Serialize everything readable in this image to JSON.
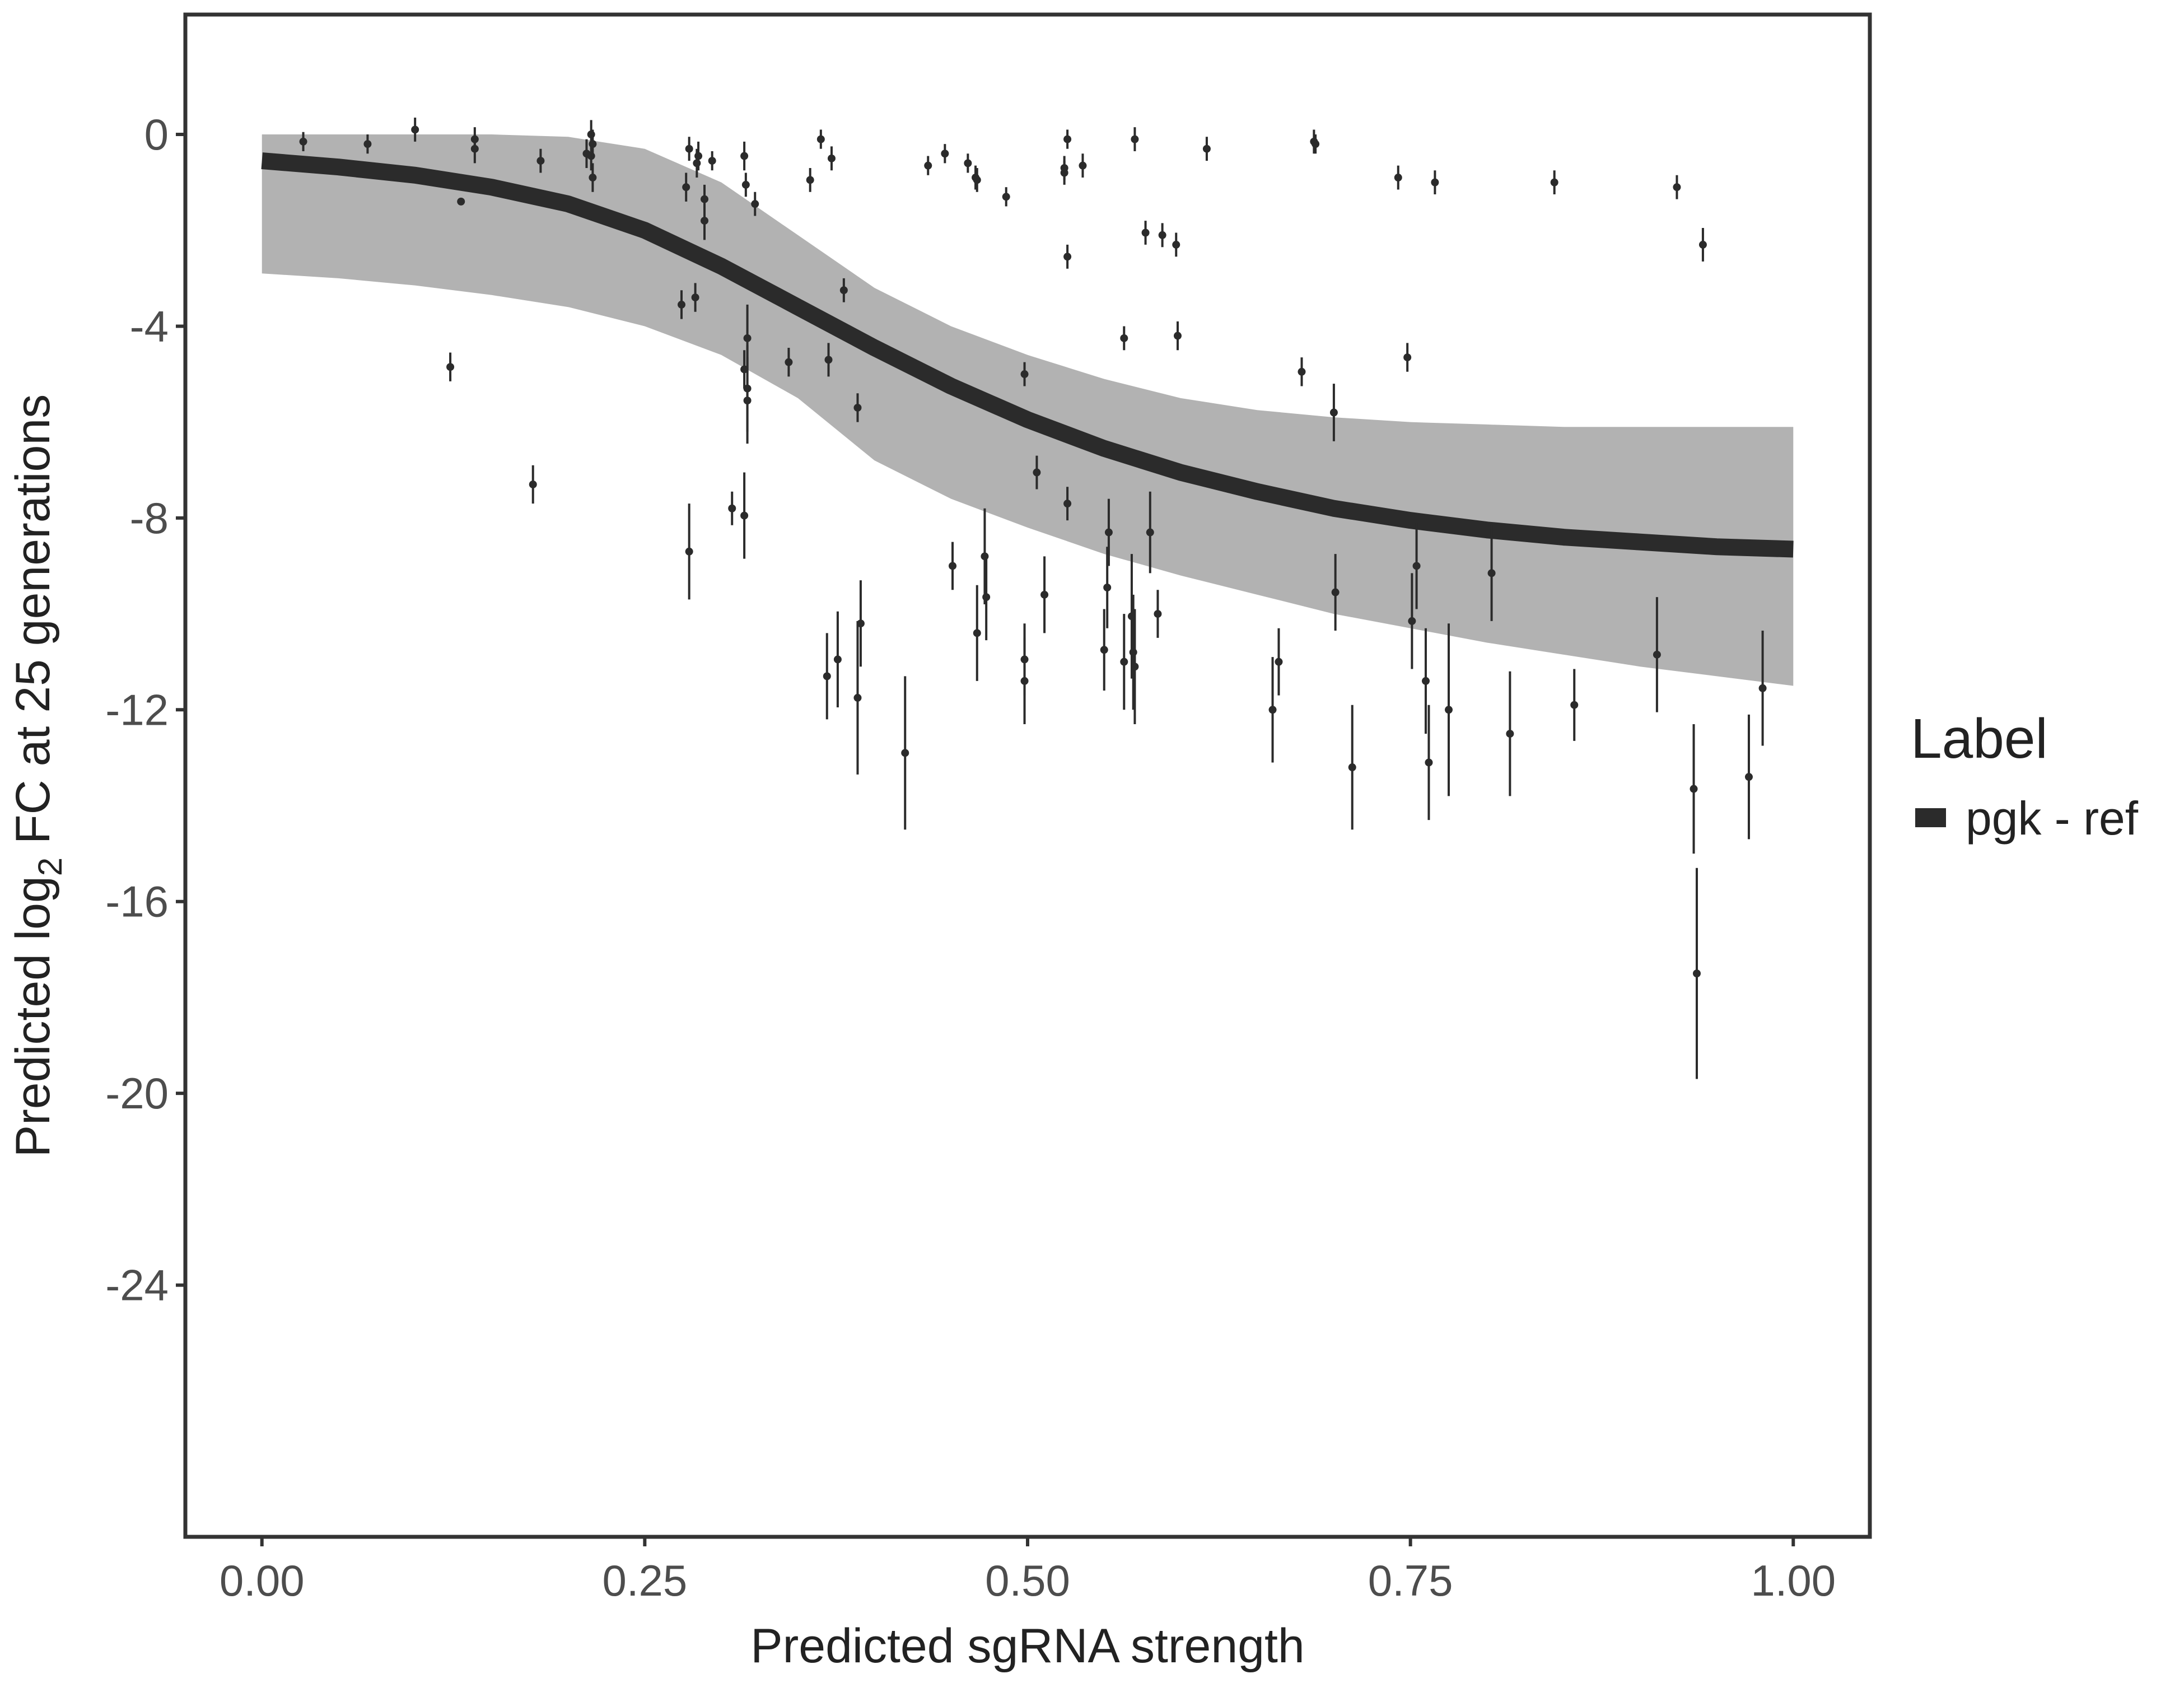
{
  "chart_data": {
    "type": "line",
    "xlabel": "Predicted sgRNA strength",
    "ylabel": {
      "before": "Predicted  log",
      "sub": "2",
      "after": " FC at 25 generations"
    },
    "legend_title": "Label",
    "legend_position": "right",
    "grid": false,
    "xlim": [
      -0.05,
      1.05
    ],
    "ylim": [
      -29.25,
      2.5
    ],
    "xticks": [
      {
        "value": 0,
        "label": "0.00"
      },
      {
        "value": 0.25,
        "label": "0.25"
      },
      {
        "value": 0.5,
        "label": "0.50"
      },
      {
        "value": 0.75,
        "label": "0.75"
      },
      {
        "value": 1,
        "label": "1.00"
      }
    ],
    "yticks": [
      0,
      -4,
      -8,
      -12,
      -16,
      -20,
      -24
    ],
    "x": [
      0,
      0.05,
      0.1,
      0.15,
      0.2,
      0.25,
      0.3,
      0.35,
      0.4,
      0.45,
      0.5,
      0.55,
      0.6,
      0.65,
      0.7,
      0.75,
      0.8,
      0.85,
      0.9,
      0.95,
      1
    ],
    "series": [
      {
        "name": "pgk - ref",
        "color": "#2b2b2b",
        "values": [
          -0.55,
          -0.68,
          -0.85,
          -1.1,
          -1.45,
          -2.0,
          -2.75,
          -3.6,
          -4.45,
          -5.25,
          -5.95,
          -6.55,
          -7.05,
          -7.45,
          -7.8,
          -8.05,
          -8.25,
          -8.4,
          -8.5,
          -8.6,
          -8.65
        ]
      }
    ],
    "band_color": "#aaaaaa",
    "band_upper": [
      0,
      0,
      0,
      0,
      -0.05,
      -0.3,
      -1.0,
      -2.1,
      -3.2,
      -4.0,
      -4.6,
      -5.1,
      -5.5,
      -5.75,
      -5.9,
      -6.0,
      -6.05,
      -6.1,
      -6.1,
      -6.1,
      -6.1
    ],
    "band_lower": [
      -2.9,
      -3.0,
      -3.15,
      -3.35,
      -3.6,
      -4.0,
      -4.6,
      -5.5,
      -6.8,
      -7.6,
      -8.2,
      -8.75,
      -9.2,
      -9.6,
      -10.0,
      -10.3,
      -10.6,
      -10.85,
      -11.1,
      -11.3,
      -11.5
    ],
    "points": {
      "color": "#2b2b2b",
      "x": [
        0.027,
        0.069,
        0.1,
        0.123,
        0.13,
        0.139,
        0.139,
        0.177,
        0.182,
        0.212,
        0.215,
        0.215,
        0.216,
        0.216,
        0.274,
        0.277,
        0.279,
        0.279,
        0.283,
        0.284,
        0.285,
        0.289,
        0.289,
        0.294,
        0.307,
        0.315,
        0.315,
        0.315,
        0.316,
        0.317,
        0.317,
        0.317,
        0.322,
        0.344,
        0.358,
        0.365,
        0.369,
        0.37,
        0.372,
        0.376,
        0.38,
        0.389,
        0.389,
        0.391,
        0.42,
        0.435,
        0.446,
        0.451,
        0.461,
        0.466,
        0.467,
        0.467,
        0.472,
        0.473,
        0.486,
        0.498,
        0.498,
        0.498,
        0.506,
        0.511,
        0.524,
        0.524,
        0.526,
        0.526,
        0.526,
        0.536,
        0.55,
        0.552,
        0.553,
        0.563,
        0.563,
        0.568,
        0.569,
        0.57,
        0.57,
        0.577,
        0.58,
        0.585,
        0.588,
        0.597,
        0.598,
        0.617,
        0.66,
        0.664,
        0.679,
        0.687,
        0.688,
        0.7,
        0.701,
        0.712,
        0.742,
        0.748,
        0.751,
        0.754,
        0.76,
        0.762,
        0.766,
        0.775,
        0.803,
        0.815,
        0.844,
        0.857,
        0.911,
        0.924,
        0.935,
        0.937,
        0.941,
        0.971,
        0.98
      ],
      "values": [
        -0.15,
        -0.2,
        0.1,
        -4.85,
        -1.4,
        -0.1,
        -0.3,
        -7.3,
        -0.55,
        -0.4,
        0.0,
        -0.45,
        -0.9,
        -0.2,
        -3.55,
        -1.1,
        -0.3,
        -8.7,
        -3.4,
        -0.6,
        -0.45,
        -1.35,
        -1.8,
        -0.55,
        -7.8,
        -0.45,
        -4.9,
        -7.95,
        -1.05,
        -4.25,
        -5.3,
        -5.55,
        -1.45,
        -4.75,
        -0.95,
        -0.1,
        -11.3,
        -4.7,
        -0.5,
        -10.95,
        -3.25,
        -5.7,
        -11.75,
        -10.2,
        -12.9,
        -0.65,
        -0.4,
        -9.0,
        -0.6,
        -0.9,
        -0.95,
        -10.4,
        -8.8,
        -9.65,
        -1.3,
        -5.0,
        -10.95,
        -11.4,
        -7.05,
        -9.6,
        -0.8,
        -0.7,
        -0.1,
        -2.55,
        -7.7,
        -0.65,
        -10.75,
        -9.45,
        -8.3,
        -4.25,
        -11.0,
        -10.05,
        -10.8,
        -0.1,
        -11.1,
        -2.05,
        -8.3,
        -10.0,
        -2.1,
        -2.3,
        -4.2,
        -0.3,
        -12.0,
        -11.0,
        -4.95,
        -0.15,
        -0.2,
        -5.8,
        -9.55,
        -13.2,
        -0.9,
        -4.65,
        -10.15,
        -9.0,
        -11.4,
        -13.1,
        -1.0,
        -12.0,
        -9.15,
        -12.5,
        -1.0,
        -11.9,
        -10.85,
        -1.1,
        -13.65,
        -17.5,
        -2.3,
        -13.4,
        -11.55
      ],
      "errors": [
        0.2,
        0.2,
        0.25,
        0.3,
        0.05,
        0.25,
        0.3,
        0.4,
        0.25,
        0.3,
        0.3,
        0.3,
        0.3,
        0.3,
        0.3,
        0.3,
        0.25,
        1.0,
        0.3,
        0.3,
        0.3,
        0.3,
        0.4,
        0.2,
        0.35,
        0.3,
        0.4,
        0.9,
        0.25,
        0.7,
        0.9,
        0.9,
        0.25,
        0.3,
        0.25,
        0.2,
        0.9,
        0.35,
        0.25,
        1.0,
        0.25,
        0.3,
        1.6,
        0.9,
        1.6,
        0.2,
        0.2,
        0.5,
        0.2,
        0.25,
        0.25,
        1.0,
        1.0,
        0.9,
        0.2,
        0.25,
        0.75,
        0.9,
        0.35,
        0.8,
        0.25,
        0.25,
        0.2,
        0.25,
        0.35,
        0.25,
        0.85,
        0.85,
        0.7,
        0.25,
        1.0,
        1.3,
        1.2,
        0.25,
        1.2,
        0.25,
        0.85,
        0.5,
        0.25,
        0.25,
        0.3,
        0.25,
        1.1,
        0.7,
        0.3,
        0.25,
        0.2,
        0.6,
        0.8,
        1.3,
        0.25,
        0.3,
        1.0,
        0.9,
        1.1,
        1.2,
        0.25,
        1.8,
        1.0,
        1.3,
        0.25,
        0.75,
        1.2,
        0.25,
        1.35,
        2.2,
        0.35,
        1.3,
        1.2
      ]
    }
  }
}
